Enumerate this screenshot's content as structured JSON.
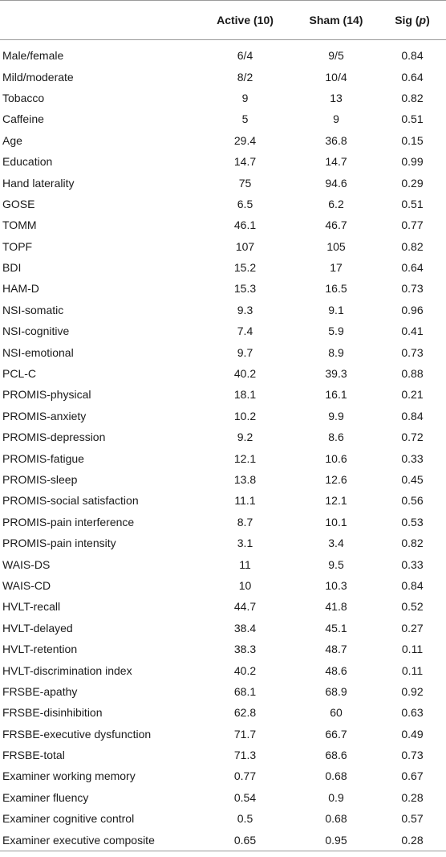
{
  "header": {
    "label": "",
    "active": "Active (10)",
    "sham": "Sham (14)",
    "sig_prefix": "Sig (",
    "sig_var": "p",
    "sig_suffix": ")"
  },
  "rows": [
    {
      "label": "Male/female",
      "active": "6/4",
      "sham": "9/5",
      "sig": "0.84"
    },
    {
      "label": "Mild/moderate",
      "active": "8/2",
      "sham": "10/4",
      "sig": "0.64"
    },
    {
      "label": "Tobacco",
      "active": "9",
      "sham": "13",
      "sig": "0.82"
    },
    {
      "label": "Caffeine",
      "active": "5",
      "sham": "9",
      "sig": "0.51"
    },
    {
      "label": "Age",
      "active": "29.4",
      "sham": "36.8",
      "sig": "0.15"
    },
    {
      "label": "Education",
      "active": "14.7",
      "sham": "14.7",
      "sig": "0.99"
    },
    {
      "label": "Hand laterality",
      "active": "75",
      "sham": "94.6",
      "sig": "0.29"
    },
    {
      "label": "GOSE",
      "active": "6.5",
      "sham": "6.2",
      "sig": "0.51"
    },
    {
      "label": "TOMM",
      "active": "46.1",
      "sham": "46.7",
      "sig": "0.77"
    },
    {
      "label": "TOPF",
      "active": "107",
      "sham": "105",
      "sig": "0.82"
    },
    {
      "label": "BDI",
      "active": "15.2",
      "sham": "17",
      "sig": "0.64"
    },
    {
      "label": "HAM-D",
      "active": "15.3",
      "sham": "16.5",
      "sig": "0.73"
    },
    {
      "label": "NSI-somatic",
      "active": "9.3",
      "sham": "9.1",
      "sig": "0.96"
    },
    {
      "label": "NSI-cognitive",
      "active": "7.4",
      "sham": "5.9",
      "sig": "0.41"
    },
    {
      "label": "NSI-emotional",
      "active": "9.7",
      "sham": "8.9",
      "sig": "0.73"
    },
    {
      "label": "PCL-C",
      "active": "40.2",
      "sham": "39.3",
      "sig": "0.88"
    },
    {
      "label": "PROMIS-physical",
      "active": "18.1",
      "sham": "16.1",
      "sig": "0.21"
    },
    {
      "label": "PROMIS-anxiety",
      "active": "10.2",
      "sham": "9.9",
      "sig": "0.84"
    },
    {
      "label": "PROMIS-depression",
      "active": "9.2",
      "sham": "8.6",
      "sig": "0.72"
    },
    {
      "label": "PROMIS-fatigue",
      "active": "12.1",
      "sham": "10.6",
      "sig": "0.33"
    },
    {
      "label": "PROMIS-sleep",
      "active": "13.8",
      "sham": "12.6",
      "sig": "0.45"
    },
    {
      "label": "PROMIS-social satisfaction",
      "active": "11.1",
      "sham": "12.1",
      "sig": "0.56"
    },
    {
      "label": "PROMIS-pain interference",
      "active": "8.7",
      "sham": "10.1",
      "sig": "0.53"
    },
    {
      "label": "PROMIS-pain intensity",
      "active": "3.1",
      "sham": "3.4",
      "sig": "0.82"
    },
    {
      "label": "WAIS-DS",
      "active": "11",
      "sham": "9.5",
      "sig": "0.33"
    },
    {
      "label": "WAIS-CD",
      "active": "10",
      "sham": "10.3",
      "sig": "0.84"
    },
    {
      "label": "HVLT-recall",
      "active": "44.7",
      "sham": "41.8",
      "sig": "0.52"
    },
    {
      "label": "HVLT-delayed",
      "active": "38.4",
      "sham": "45.1",
      "sig": "0.27"
    },
    {
      "label": "HVLT-retention",
      "active": "38.3",
      "sham": "48.7",
      "sig": "0.11"
    },
    {
      "label": "HVLT-discrimination index",
      "active": "40.2",
      "sham": "48.6",
      "sig": "0.11"
    },
    {
      "label": "FRSBE-apathy",
      "active": "68.1",
      "sham": "68.9",
      "sig": "0.92"
    },
    {
      "label": "FRSBE-disinhibition",
      "active": "62.8",
      "sham": "60",
      "sig": "0.63"
    },
    {
      "label": "FRSBE-executive dysfunction",
      "active": "71.7",
      "sham": "66.7",
      "sig": "0.49"
    },
    {
      "label": "FRSBE-total",
      "active": "71.3",
      "sham": "68.6",
      "sig": "0.73"
    },
    {
      "label": "Examiner working memory",
      "active": "0.77",
      "sham": "0.68",
      "sig": "0.67"
    },
    {
      "label": "Examiner fluency",
      "active": "0.54",
      "sham": "0.9",
      "sig": "0.28"
    },
    {
      "label": "Examiner cognitive control",
      "active": "0.5",
      "sham": "0.68",
      "sig": "0.57"
    },
    {
      "label": "Examiner executive composite",
      "active": "0.65",
      "sham": "0.95",
      "sig": "0.28"
    }
  ]
}
